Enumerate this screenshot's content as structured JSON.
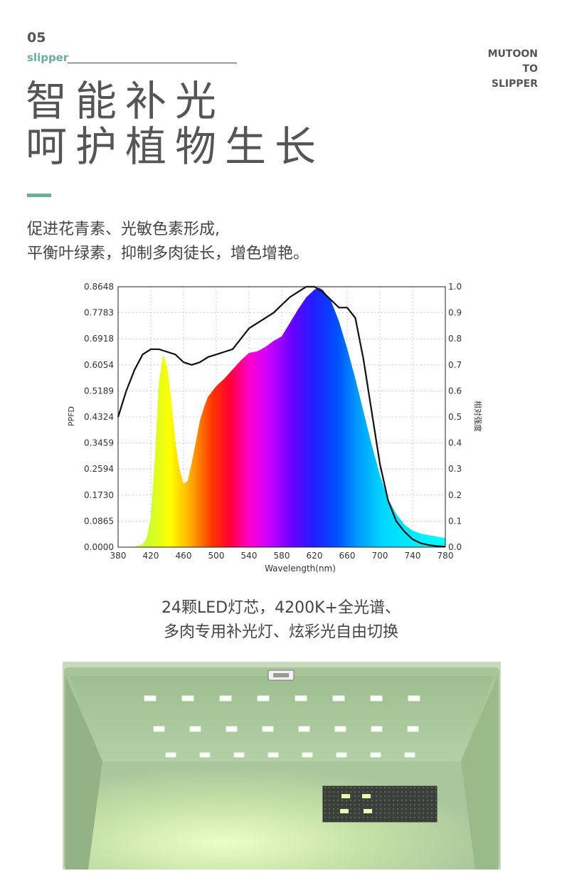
{
  "header": {
    "section_number": "05",
    "section_tag": "slipper",
    "brand_lines": [
      "MUTOON",
      "TO",
      "SLIPPER"
    ],
    "headline_lines": [
      "智能补光",
      "呵护植物生长"
    ]
  },
  "intro_lines": [
    "促进花青素、光敏色素形成,",
    "平衡叶绿素，抑制多肉徒长，增色增艳。"
  ],
  "caption_lines": [
    "24颗LED灯芯，4200K+全光谱、",
    "多肉专用补光灯、炫彩光自由切换"
  ],
  "colors": {
    "accent": "#6bae9a",
    "text": "#555555",
    "enclosure": "#a9c69c"
  },
  "icons": [
    "led-chip-icon",
    "usb-port-icon",
    "speaker-grille-icon"
  ],
  "chart_data": {
    "type": "area",
    "title": "",
    "xlabel": "Wavelength(nm)",
    "ylabel": "PPFD",
    "y2label": "相对强度",
    "xlim": [
      380,
      780
    ],
    "ylim": [
      0,
      0.8648
    ],
    "y2lim": [
      0,
      1.0
    ],
    "x_ticks": [
      "380",
      "420",
      "460",
      "500",
      "540",
      "580",
      "620",
      "660",
      "700",
      "740",
      "780"
    ],
    "y_ticks": [
      "0.0000",
      "0.0865",
      "0.1730",
      "0.2594",
      "0.3459",
      "0.4324",
      "0.5189",
      "0.6054",
      "0.6918",
      "0.7783",
      "0.8648"
    ],
    "y2_ticks": [
      "0.0",
      "0.1",
      "0.2",
      "0.3",
      "0.4",
      "0.5",
      "0.6",
      "0.7",
      "0.8",
      "0.9",
      "1.0"
    ],
    "grid": true,
    "series": [
      {
        "name": "",
        "axis": "left",
        "style": "filled-spectrum",
        "x": [
          380,
          400,
          410,
          415,
          420,
          425,
          430,
          435,
          440,
          445,
          450,
          455,
          460,
          465,
          470,
          475,
          480,
          485,
          490,
          500,
          510,
          520,
          530,
          540,
          550,
          560,
          570,
          580,
          590,
          600,
          610,
          620,
          625,
          630,
          640,
          650,
          660,
          670,
          680,
          690,
          700,
          710,
          720,
          730,
          740,
          750,
          760,
          770,
          780
        ],
        "y": [
          0.0,
          0.002,
          0.01,
          0.03,
          0.1,
          0.3,
          0.55,
          0.64,
          0.6,
          0.49,
          0.35,
          0.26,
          0.21,
          0.22,
          0.28,
          0.35,
          0.42,
          0.465,
          0.5,
          0.535,
          0.56,
          0.59,
          0.62,
          0.645,
          0.65,
          0.665,
          0.685,
          0.7,
          0.745,
          0.79,
          0.83,
          0.855,
          0.862,
          0.855,
          0.82,
          0.75,
          0.66,
          0.56,
          0.45,
          0.34,
          0.24,
          0.16,
          0.11,
          0.075,
          0.055,
          0.045,
          0.04,
          0.035,
          0.03
        ]
      },
      {
        "name": "",
        "axis": "right",
        "style": "line",
        "x": [
          380,
          390,
          400,
          410,
          420,
          430,
          440,
          450,
          460,
          470,
          480,
          490,
          500,
          510,
          520,
          530,
          540,
          550,
          560,
          570,
          580,
          590,
          600,
          610,
          620,
          630,
          640,
          650,
          660,
          670,
          680,
          690,
          700,
          710,
          720,
          730,
          740,
          750,
          760,
          770,
          780
        ],
        "y": [
          0.5,
          0.6,
          0.68,
          0.74,
          0.76,
          0.76,
          0.75,
          0.74,
          0.71,
          0.7,
          0.71,
          0.73,
          0.74,
          0.75,
          0.76,
          0.8,
          0.84,
          0.86,
          0.88,
          0.9,
          0.93,
          0.96,
          0.98,
          1.0,
          1.0,
          0.98,
          0.95,
          0.92,
          0.92,
          0.88,
          0.72,
          0.52,
          0.32,
          0.18,
          0.1,
          0.06,
          0.03,
          0.015,
          0.008,
          0.004,
          0.002
        ]
      }
    ]
  }
}
